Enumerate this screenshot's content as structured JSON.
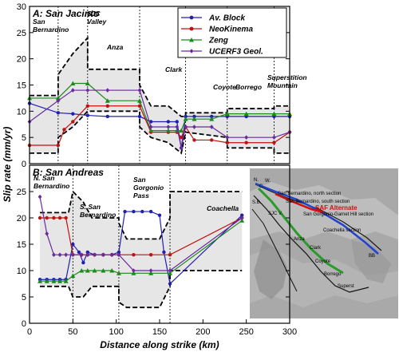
{
  "chart_data": [
    {
      "type": "line",
      "title": "A: San Jacinto",
      "xlabel": "",
      "ylabel": "Slip rate (mm/yr)",
      "xlim": [
        0,
        300
      ],
      "ylim": [
        0,
        30
      ],
      "yticks": [
        0,
        5,
        10,
        15,
        20,
        25,
        30
      ],
      "grid": false,
      "legend_position": "top-right",
      "section_breaks": [
        33,
        67,
        127,
        180,
        228,
        282
      ],
      "regions": [
        "San\nBernardino",
        "SJC\nValley",
        "Anza",
        "Clark",
        "Coyote",
        "Borrego",
        "Superstition\nMountain"
      ],
      "series": [
        {
          "name": "Av. Block",
          "color": "#1f1fb0",
          "marker": "circle",
          "x": [
            0,
            33,
            50,
            67,
            90,
            127,
            140,
            160,
            170,
            175,
            180,
            190,
            210,
            228,
            250,
            282,
            300
          ],
          "y": [
            11.5,
            9.7,
            9.5,
            9.2,
            9,
            9,
            8,
            8,
            8,
            3,
            9,
            9,
            9,
            9,
            9,
            9,
            9
          ]
        },
        {
          "name": "NeoKinema",
          "color": "#c01010",
          "marker": "circle",
          "x": [
            0,
            33,
            40,
            50,
            67,
            90,
            127,
            140,
            160,
            170,
            175,
            180,
            190,
            210,
            228,
            250,
            282,
            300
          ],
          "y": [
            3.5,
            3.5,
            6.5,
            8,
            11,
            11,
            11,
            6,
            6,
            6,
            5,
            7,
            4.5,
            4.5,
            4,
            4,
            4,
            6
          ]
        },
        {
          "name": "Zeng",
          "color": "#1a8a1a",
          "marker": "triangle",
          "x": [
            0,
            33,
            50,
            67,
            90,
            127,
            140,
            160,
            170,
            175,
            180,
            190,
            210,
            228,
            250,
            282,
            300
          ],
          "y": [
            12.5,
            12.5,
            15.3,
            15.3,
            12,
            12,
            6.3,
            6.3,
            6.3,
            6.3,
            8.5,
            8.5,
            8.5,
            9.5,
            9.5,
            9.5,
            9.5
          ]
        },
        {
          "name": "UCERF3 Geol.",
          "color": "#6a2aa0",
          "marker": "diamond",
          "x": [
            0,
            33,
            50,
            67,
            90,
            127,
            140,
            160,
            170,
            175,
            180,
            190,
            210,
            228,
            250,
            282,
            300
          ],
          "y": [
            8,
            12,
            14,
            14,
            14,
            14,
            7,
            7,
            7,
            3,
            7,
            7,
            7,
            5,
            5,
            5,
            6
          ]
        }
      ],
      "envelopes": [
        {
          "x": [
            0,
            33,
            33,
            50,
            67,
            67,
            127,
            127,
            140,
            160,
            175,
            180,
            180,
            228,
            228,
            282,
            282,
            300
          ],
          "y": [
            13,
            13,
            17,
            21,
            24,
            18,
            18,
            15,
            11,
            11,
            9,
            9,
            9.7,
            9.7,
            10.5,
            10.5,
            11,
            11
          ]
        },
        {
          "x": [
            0,
            33,
            33,
            50,
            67,
            67,
            127,
            127,
            140,
            160,
            175,
            180,
            180,
            228,
            228,
            282,
            282,
            300
          ],
          "y": [
            2,
            2,
            5,
            7,
            10,
            10,
            10,
            7,
            5,
            4,
            2,
            6,
            6,
            5,
            3,
            3,
            2,
            2
          ]
        }
      ]
    },
    {
      "type": "line",
      "title": "B: San Andreas",
      "xlabel": "Distance along strike (km)",
      "ylabel": "Slip rate (mm/yr)",
      "xlim": [
        0,
        300
      ],
      "ylim": [
        0,
        30
      ],
      "xticks": [
        0,
        50,
        100,
        150,
        200,
        250,
        300
      ],
      "yticks": [
        0,
        5,
        10,
        15,
        20,
        25
      ],
      "grid": false,
      "section_breaks": [
        50,
        103,
        162
      ],
      "regions": [
        "N. San\nBernardino",
        "S. San\nBernardino",
        "San\nGorgonio\nPass",
        "Coachella"
      ],
      "series": [
        {
          "name": "Av. Block",
          "color": "#1f1fb0",
          "marker": "circle",
          "x": [
            12,
            20,
            28,
            35,
            42,
            50,
            57,
            62,
            67,
            75,
            85,
            95,
            103,
            110,
            120,
            130,
            140,
            150,
            155,
            162,
            245
          ],
          "y": [
            8.3,
            8.3,
            8.3,
            8.3,
            8.3,
            15,
            13.5,
            11.5,
            13.5,
            13,
            13,
            13,
            13.5,
            21.2,
            21.2,
            21.2,
            21.2,
            20.5,
            13.5,
            7.5,
            20.5
          ]
        },
        {
          "name": "NeoKinema",
          "color": "#c01010",
          "marker": "circle",
          "x": [
            12,
            20,
            28,
            35,
            42,
            50,
            60,
            67,
            75,
            85,
            95,
            103,
            120,
            140,
            162,
            245
          ],
          "y": [
            20,
            20,
            20,
            20,
            20,
            13,
            13,
            13,
            13,
            13,
            13,
            13,
            13,
            13,
            13,
            20
          ]
        },
        {
          "name": "Zeng",
          "color": "#1a8a1a",
          "marker": "triangle",
          "x": [
            12,
            20,
            28,
            35,
            42,
            50,
            60,
            67,
            75,
            85,
            95,
            103,
            120,
            140,
            162,
            245
          ],
          "y": [
            8,
            8,
            8,
            8,
            8,
            9,
            10,
            10,
            10,
            10,
            10,
            9.5,
            9.5,
            9.5,
            9.5,
            19.5
          ]
        },
        {
          "name": "UCERF3 Geol.",
          "color": "#6a2aa0",
          "marker": "diamond",
          "x": [
            12,
            20,
            28,
            35,
            42,
            50,
            60,
            67,
            75,
            85,
            95,
            103,
            120,
            140,
            162,
            245
          ],
          "y": [
            24,
            17,
            13,
            13,
            13,
            13,
            13,
            13,
            13,
            13,
            13,
            13,
            10,
            10,
            10,
            20
          ]
        }
      ],
      "envelopes": [
        {
          "x": [
            12,
            45,
            50,
            62,
            72,
            103,
            103,
            112,
            150,
            162,
            162,
            245
          ],
          "y": [
            21,
            21,
            25,
            23,
            20,
            20,
            19,
            16,
            16,
            20,
            25,
            25
          ]
        },
        {
          "x": [
            12,
            45,
            50,
            62,
            72,
            103,
            103,
            112,
            150,
            162,
            162,
            245
          ],
          "y": [
            7,
            7,
            5,
            5,
            7,
            7,
            4,
            3,
            3,
            7,
            10,
            10
          ]
        }
      ]
    }
  ],
  "map": {
    "labels": [
      "S.B.",
      "N.",
      "C.",
      "W.",
      "SJC V.",
      "Anza",
      "Clark",
      "Coyote",
      "Borrego",
      "Superst",
      "BB"
    ],
    "fault_labels": [
      "San Bernardino, north section",
      "San Bernardino, south section",
      "San Gorgonio-Garnet Hill section",
      "Coachella section",
      "SAF Alternate"
    ]
  }
}
